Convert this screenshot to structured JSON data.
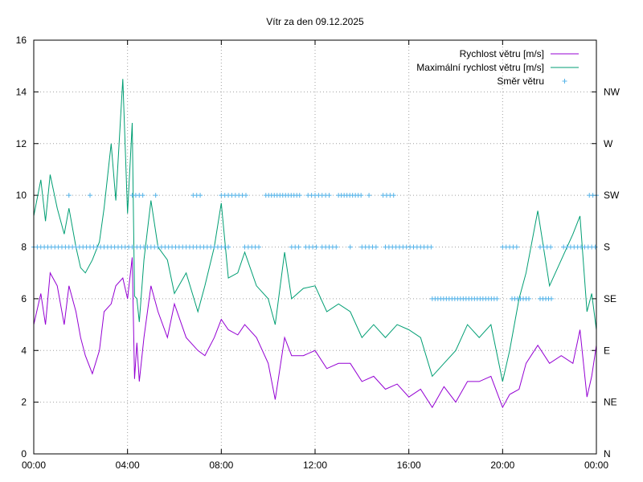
{
  "chart_data": {
    "type": "line",
    "title": "Vítr za den 09.12.2025",
    "x_tick_labels": [
      "00:00",
      "04:00",
      "08:00",
      "12:00",
      "16:00",
      "20:00",
      "00:00"
    ],
    "x_range_hours": [
      0,
      24
    ],
    "y_left_ticks": [
      "0",
      "2",
      "4",
      "6",
      "8",
      "10",
      "12",
      "14",
      "16"
    ],
    "ylim": [
      0,
      16
    ],
    "y_right_ticks": [
      "N",
      "NE",
      "E",
      "SE",
      "S",
      "SW",
      "W",
      "NW"
    ],
    "y_right_values": [
      0,
      2,
      4,
      6,
      8,
      10,
      12,
      14
    ],
    "grid": true,
    "legend_position": "top-right",
    "series": [
      {
        "name": "Rychlost větru [m/s]",
        "color": "#9400d3",
        "style": "line",
        "x": [
          0,
          0.3,
          0.5,
          0.7,
          1.0,
          1.3,
          1.5,
          1.8,
          2.0,
          2.2,
          2.5,
          2.8,
          3.0,
          3.3,
          3.5,
          3.8,
          4.0,
          4.2,
          4.3,
          4.4,
          4.5,
          4.7,
          5.0,
          5.3,
          5.7,
          6.0,
          6.5,
          7.0,
          7.3,
          7.7,
          8.0,
          8.3,
          8.7,
          9.0,
          9.5,
          10.0,
          10.3,
          10.7,
          11.0,
          11.5,
          12.0,
          12.5,
          13.0,
          13.5,
          14.0,
          14.5,
          15.0,
          15.5,
          16.0,
          16.5,
          17.0,
          17.5,
          18.0,
          18.5,
          19.0,
          19.5,
          20.0,
          20.3,
          20.7,
          21.0,
          21.5,
          22.0,
          22.5,
          23.0,
          23.3,
          23.6,
          23.8,
          24.0
        ],
        "y": [
          5.0,
          6.2,
          5.0,
          7.0,
          6.5,
          5.0,
          6.5,
          5.5,
          4.5,
          3.8,
          3.1,
          4.0,
          5.5,
          5.8,
          6.5,
          6.8,
          6.0,
          7.6,
          2.9,
          4.3,
          2.8,
          4.5,
          6.5,
          5.5,
          4.5,
          5.8,
          4.5,
          4.0,
          3.8,
          4.5,
          5.2,
          4.8,
          4.6,
          5.0,
          4.5,
          3.5,
          2.1,
          4.5,
          3.8,
          3.8,
          4.0,
          3.3,
          3.5,
          3.5,
          2.8,
          3.0,
          2.5,
          2.7,
          2.2,
          2.5,
          1.8,
          2.6,
          2.0,
          2.8,
          2.8,
          3.0,
          1.8,
          2.3,
          2.5,
          3.5,
          4.2,
          3.5,
          3.8,
          3.5,
          4.8,
          2.2,
          3.0,
          4.2
        ]
      },
      {
        "name": "Maximální rychlost větru [m/s]",
        "color": "#009e73",
        "style": "line",
        "x": [
          0,
          0.3,
          0.5,
          0.7,
          1.0,
          1.3,
          1.5,
          1.8,
          2.0,
          2.2,
          2.5,
          2.8,
          3.0,
          3.3,
          3.5,
          3.8,
          4.0,
          4.2,
          4.3,
          4.4,
          4.5,
          4.7,
          5.0,
          5.3,
          5.7,
          6.0,
          6.5,
          7.0,
          7.3,
          7.7,
          8.0,
          8.3,
          8.7,
          9.0,
          9.5,
          10.0,
          10.3,
          10.7,
          11.0,
          11.5,
          12.0,
          12.5,
          13.0,
          13.5,
          14.0,
          14.5,
          15.0,
          15.5,
          16.0,
          16.5,
          17.0,
          17.5,
          18.0,
          18.5,
          19.0,
          19.5,
          20.0,
          20.3,
          20.7,
          21.0,
          21.5,
          22.0,
          22.5,
          23.0,
          23.3,
          23.6,
          23.8,
          24.0
        ],
        "y": [
          9.2,
          10.6,
          9.0,
          10.8,
          9.5,
          8.5,
          9.5,
          8.0,
          7.2,
          7.0,
          7.5,
          8.2,
          9.5,
          12.0,
          9.8,
          14.5,
          9.3,
          12.8,
          6.1,
          6.0,
          5.1,
          7.5,
          9.8,
          8.0,
          7.5,
          6.2,
          7.0,
          5.5,
          6.5,
          8.0,
          9.7,
          6.8,
          7.0,
          7.8,
          6.5,
          6.0,
          5.0,
          7.8,
          6.0,
          6.4,
          6.5,
          5.5,
          5.8,
          5.5,
          4.5,
          5.0,
          4.5,
          5.0,
          4.8,
          4.5,
          3.0,
          3.5,
          4.0,
          5.0,
          4.5,
          5.0,
          2.8,
          4.0,
          6.0,
          7.0,
          9.4,
          6.5,
          7.5,
          8.5,
          9.2,
          5.5,
          6.2,
          4.8
        ]
      },
      {
        "name": "Směr větru",
        "color": "#56b4e9",
        "style": "points",
        "segments": [
          {
            "from": 0.0,
            "to": 4.2,
            "value": 8,
            "step": 0.15
          },
          {
            "from": 4.4,
            "to": 8.4,
            "value": 8,
            "step": 0.15
          },
          {
            "from": 9.0,
            "to": 9.6,
            "value": 8,
            "step": 0.15
          },
          {
            "from": 11.0,
            "to": 11.3,
            "value": 8,
            "step": 0.15
          },
          {
            "from": 11.6,
            "to": 12.1,
            "value": 8,
            "step": 0.15
          },
          {
            "from": 12.3,
            "to": 13.0,
            "value": 8,
            "step": 0.15
          },
          {
            "from": 14.0,
            "to": 14.6,
            "value": 8,
            "step": 0.15
          },
          {
            "from": 15.0,
            "to": 17.0,
            "value": 8,
            "step": 0.15
          },
          {
            "from": 20.0,
            "to": 20.6,
            "value": 8,
            "step": 0.15
          },
          {
            "from": 21.6,
            "to": 22.1,
            "value": 8,
            "step": 0.15
          },
          {
            "from": 22.6,
            "to": 24.0,
            "value": 8,
            "step": 0.15
          },
          {
            "from": 17.0,
            "to": 19.8,
            "value": 6,
            "step": 0.12
          },
          {
            "from": 20.4,
            "to": 21.2,
            "value": 6,
            "step": 0.12
          },
          {
            "from": 21.6,
            "to": 22.1,
            "value": 6,
            "step": 0.12
          },
          {
            "from": 4.2,
            "to": 4.7,
            "value": 10,
            "step": 0.15
          },
          {
            "from": 6.8,
            "to": 7.2,
            "value": 10,
            "step": 0.15
          },
          {
            "from": 8.0,
            "to": 9.1,
            "value": 10,
            "step": 0.15
          },
          {
            "from": 9.9,
            "to": 11.4,
            "value": 10,
            "step": 0.12
          },
          {
            "from": 11.7,
            "to": 12.7,
            "value": 10,
            "step": 0.15
          },
          {
            "from": 13.0,
            "to": 14.0,
            "value": 10,
            "step": 0.12
          },
          {
            "from": 14.9,
            "to": 15.4,
            "value": 10,
            "step": 0.15
          },
          {
            "from": 23.7,
            "to": 24.0,
            "value": 10,
            "step": 0.15
          }
        ],
        "points": [
          {
            "x": 1.5,
            "y": 10
          },
          {
            "x": 2.4,
            "y": 10
          },
          {
            "x": 5.2,
            "y": 10
          },
          {
            "x": 14.3,
            "y": 10
          },
          {
            "x": 13.5,
            "y": 8
          }
        ]
      }
    ]
  }
}
